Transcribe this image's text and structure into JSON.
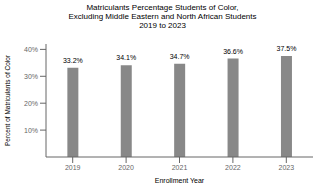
{
  "chart_data": {
    "type": "bar",
    "title": "Matriculants Percentage Students of Color,\nExcluding Middle Eastern and North African Students\n2019 to 2023",
    "xlabel": "Enrollment Year",
    "ylabel": "Percent of Matriculants of Color",
    "categories": [
      "2019",
      "2020",
      "2021",
      "2022",
      "2023"
    ],
    "values": [
      33.2,
      34.1,
      34.7,
      36.6,
      37.5
    ],
    "value_labels": [
      "33.2%",
      "34.1%",
      "34.7%",
      "36.6%",
      "37.5%"
    ],
    "data_labels": true,
    "color": "#888888",
    "ylim": [
      0,
      42
    ],
    "yticks": [
      {
        "value": 10,
        "label": "10%"
      },
      {
        "value": 20,
        "label": "20%"
      },
      {
        "value": 30,
        "label": "30%"
      },
      {
        "value": 40,
        "label": "40%"
      }
    ],
    "grid": false
  }
}
